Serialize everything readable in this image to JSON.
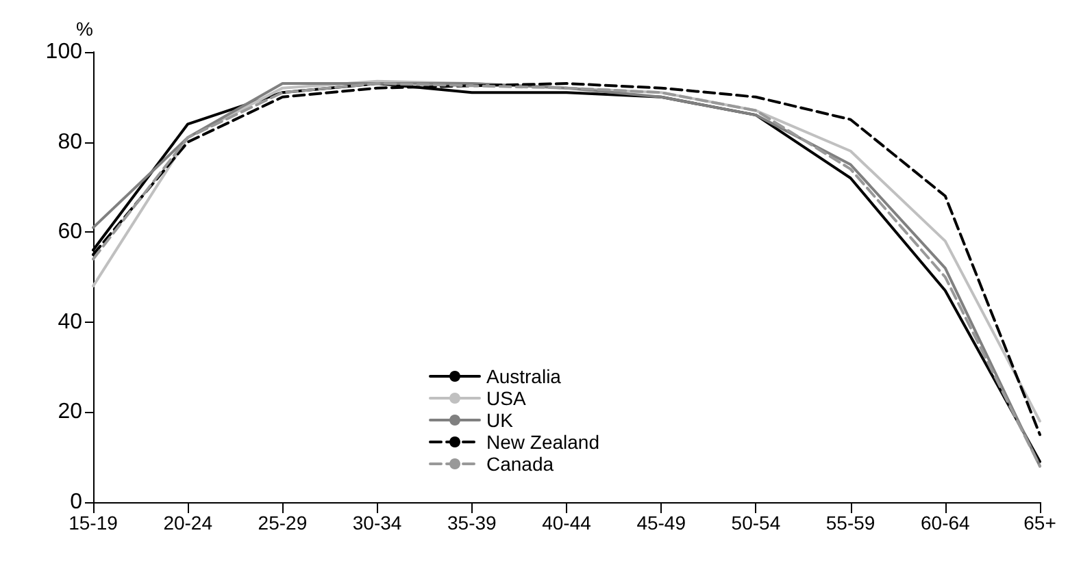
{
  "chart_data": {
    "type": "line",
    "ylabel": "%",
    "categories": [
      "15-19",
      "20-24",
      "25-29",
      "30-34",
      "35-39",
      "40-44",
      "45-49",
      "50-54",
      "55-59",
      "60-64",
      "65+"
    ],
    "series": [
      {
        "name": "Australia",
        "color": "#000000",
        "line_style": "solid",
        "values": [
          56,
          84,
          91,
          93,
          91,
          91,
          90,
          86,
          72,
          47,
          9
        ]
      },
      {
        "name": "USA",
        "color": "#c0c0c0",
        "line_style": "solid",
        "values": [
          48,
          81,
          92,
          93.5,
          93,
          92,
          91,
          87,
          78,
          58,
          18
        ]
      },
      {
        "name": "UK",
        "color": "#808080",
        "line_style": "solid",
        "values": [
          61,
          81,
          93,
          93,
          93,
          92,
          90,
          86,
          75,
          52,
          8
        ]
      },
      {
        "name": "New Zealand",
        "color": "#000000",
        "line_style": "dashed",
        "values": [
          55,
          80,
          90,
          92,
          92.5,
          93,
          92,
          90,
          85,
          68,
          15
        ]
      },
      {
        "name": "Canada",
        "color": "#999999",
        "line_style": "dashed",
        "values": [
          54,
          81,
          91,
          93,
          92.5,
          92,
          91,
          87,
          74,
          50,
          8
        ]
      }
    ],
    "ylim": [
      0,
      100
    ],
    "yticks": [
      0,
      20,
      40,
      60,
      80,
      100
    ],
    "grid": false,
    "legend": "bottom",
    "marker": "none"
  }
}
